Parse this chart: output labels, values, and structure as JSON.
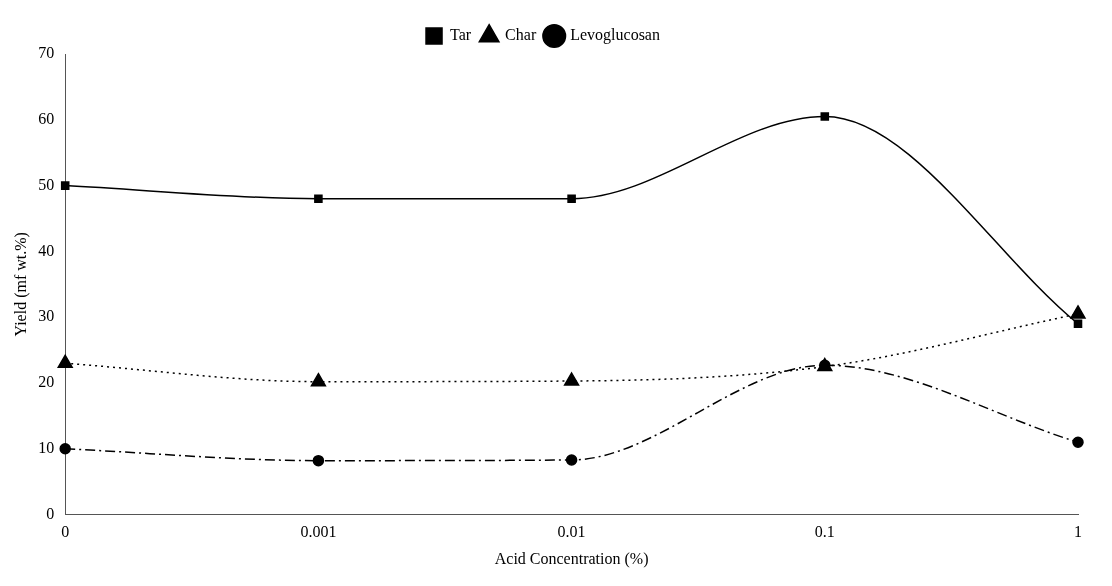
{
  "chart_data": {
    "type": "line",
    "xlabel": "Acid Concentration (%)",
    "ylabel": "Yield (mf wt.%)",
    "categories": [
      "0",
      "0.001",
      "0.01",
      "0.1",
      "1"
    ],
    "ylim": [
      0,
      70
    ],
    "yticks": [
      0,
      10,
      20,
      30,
      40,
      50,
      60,
      70
    ],
    "grid": false,
    "legend": "top",
    "series": [
      {
        "name": "Tar",
        "color": "#000000",
        "marker": "square",
        "line_style": "solid",
        "values": [
          50,
          48,
          48,
          60.5,
          29
        ]
      },
      {
        "name": "Char",
        "color": "#000000",
        "marker": "triangle",
        "line_style": "dotted",
        "values": [
          23,
          20.2,
          20.3,
          22.5,
          30.5
        ]
      },
      {
        "name": "Levoglucosan",
        "color": "#000000",
        "marker": "circle",
        "line_style": "dashed",
        "values": [
          10,
          8.2,
          8.3,
          22.7,
          11
        ]
      }
    ]
  }
}
